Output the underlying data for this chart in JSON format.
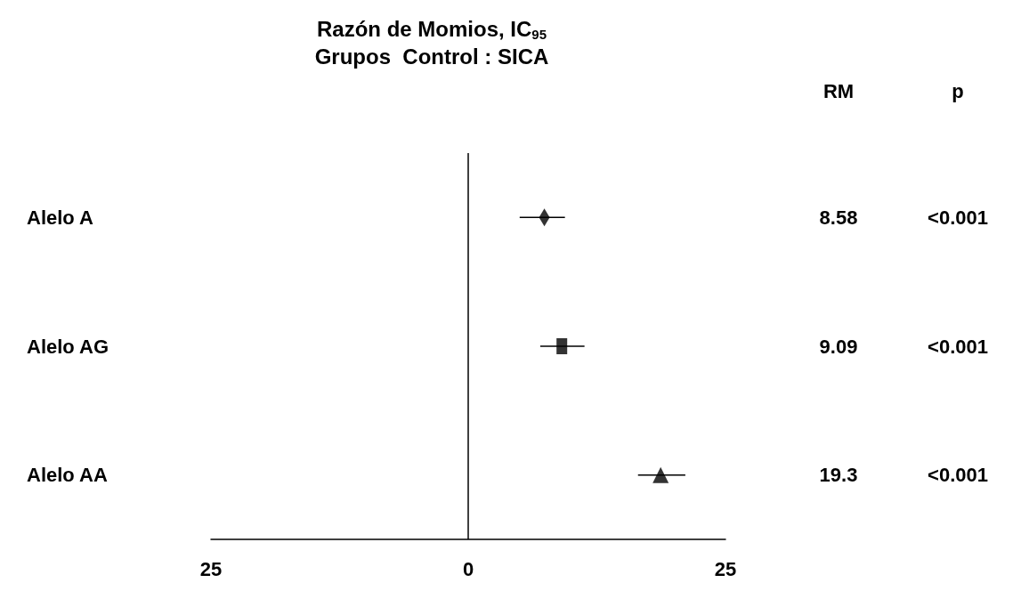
{
  "chart_data": {
    "type": "scatter",
    "orientation": "horizontal",
    "title": "Razón de Momios, IC$_{95}$",
    "subtitle": "Grupos  Control : SICA",
    "categories": [
      "Alelo A",
      "Alelo AG",
      "Alelo AA"
    ],
    "series": [
      {
        "color": "#000000",
        "marker": "diamond",
        "values": [
          7.4,
          null,
          null
        ],
        "errors": [
          [
            5.0,
            9.4
          ],
          null,
          null
        ]
      },
      {
        "color": "#000000",
        "marker": "square",
        "values": [
          null,
          9.1,
          null
        ],
        "errors": [
          null,
          [
            7.0,
            11.3
          ],
          null
        ]
      },
      {
        "color": "#000000",
        "marker": "triangle",
        "values": [
          null,
          null,
          18.7
        ],
        "errors": [
          null,
          null,
          [
            16.5,
            21.1
          ]
        ]
      }
    ],
    "xlim": [
      -25,
      25
    ],
    "xticks": [
      {
        "value": -25,
        "label": "25"
      },
      0,
      25
    ],
    "ref_lines": [
      {
        "axis": "x",
        "value": 0,
        "color": "#000000"
      }
    ],
    "grid": false,
    "annotations": [
      "RM",
      "p",
      "8.58",
      "<0.001",
      "9.09",
      "<0.001",
      "19.3",
      "<0.001"
    ]
  }
}
